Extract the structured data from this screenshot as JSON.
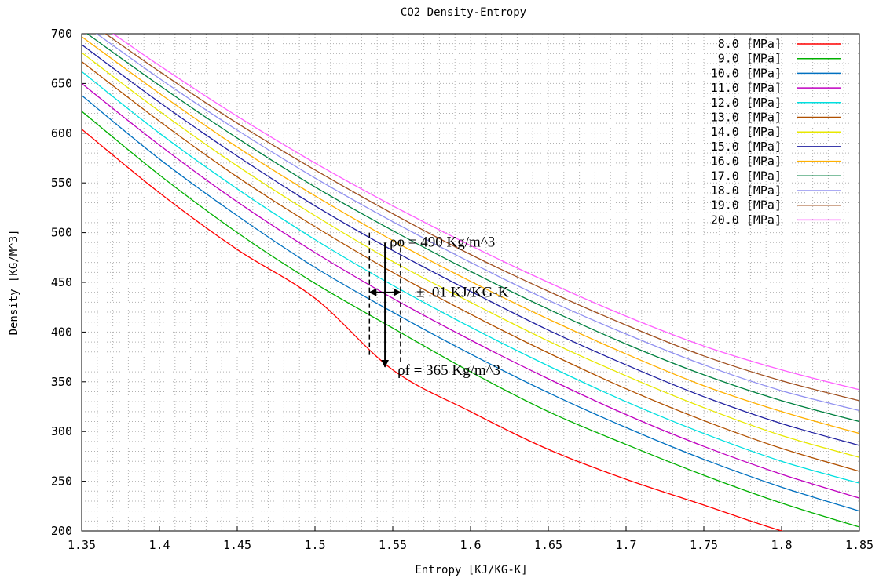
{
  "chart_data": {
    "type": "line",
    "title": "CO2 Density-Entropy",
    "xlabel": "Entropy [KJ/KG-K]",
    "ylabel": "Density [KG/M^3]",
    "xlim": [
      1.35,
      1.85
    ],
    "ylim": [
      200,
      700
    ],
    "xticks": [
      "1.35",
      "1.4",
      "1.45",
      "1.5",
      "1.55",
      "1.6",
      "1.65",
      "1.7",
      "1.75",
      "1.8",
      "1.85"
    ],
    "yticks": [
      "200",
      "250",
      "300",
      "350",
      "400",
      "450",
      "500",
      "550",
      "600",
      "650",
      "700"
    ],
    "grid": "dotted",
    "legend_position": "top-right",
    "x": [
      1.35,
      1.4,
      1.45,
      1.5,
      1.55,
      1.6,
      1.65,
      1.7,
      1.75,
      1.8,
      1.85
    ],
    "series": [
      {
        "name": "8.0 [MPa]",
        "color": "#ff0000",
        "values": [
          604,
          540,
          483,
          434,
          362,
          320,
          282,
          252,
          226,
          200,
          180
        ]
      },
      {
        "name": "9.0 [MPa]",
        "color": "#00b000",
        "values": [
          622,
          558,
          500,
          449,
          404,
          360,
          320,
          287,
          256,
          228,
          204
        ]
      },
      {
        "name": "10.0 [MPa]",
        "color": "#0070c0",
        "values": [
          638,
          574,
          517,
          465,
          420,
          378,
          339,
          304,
          272,
          244,
          220
        ]
      },
      {
        "name": "11.0 [MPa]",
        "color": "#c000c0",
        "values": [
          650,
          588,
          531,
          480,
          434,
          392,
          353,
          317,
          285,
          257,
          233
        ]
      },
      {
        "name": "12.0 [MPa]",
        "color": "#00e0e0",
        "values": [
          662,
          600,
          544,
          493,
          447,
          405,
          366,
          330,
          298,
          270,
          248
        ]
      },
      {
        "name": "13.0 [MPa]",
        "color": "#b05000",
        "values": [
          672,
          612,
          556,
          506,
          460,
          418,
          379,
          343,
          311,
          283,
          260
        ]
      },
      {
        "name": "14.0 [MPa]",
        "color": "#e8e800",
        "values": [
          681,
          622,
          567,
          517,
          471,
          430,
          391,
          356,
          324,
          296,
          274
        ]
      },
      {
        "name": "15.0 [MPa]",
        "color": "#2020a0",
        "values": [
          689,
          631,
          577,
          527,
          482,
          441,
          402,
          367,
          335,
          308,
          286
        ]
      },
      {
        "name": "16.0 [MPa]",
        "color": "#ffb000",
        "values": [
          697,
          640,
          586,
          537,
          492,
          451,
          413,
          378,
          346,
          320,
          298
        ]
      },
      {
        "name": "17.0 [MPa]",
        "color": "#008040",
        "values": [
          704,
          648,
          595,
          546,
          502,
          461,
          423,
          388,
          357,
          331,
          310
        ]
      },
      {
        "name": "18.0 [MPa]",
        "color": "#9090f0",
        "values": [
          711,
          655,
          603,
          555,
          511,
          470,
          432,
          398,
          367,
          341,
          321
        ]
      },
      {
        "name": "19.0 [MPa]",
        "color": "#a05020",
        "values": [
          717,
          662,
          610,
          563,
          519,
          478,
          441,
          407,
          376,
          351,
          331
        ]
      },
      {
        "name": "20.0 [MPa]",
        "color": "#ff60ff",
        "values": [
          722,
          668,
          617,
          570,
          527,
          487,
          450,
          416,
          386,
          362,
          342
        ]
      }
    ],
    "annotations": {
      "rho_o": "ρo = 490 Kg/m^3",
      "rho_f": "ρf = 365 Kg/m^3",
      "delta_s": "± .01 KJ/KG-K",
      "dashed_x": [
        1.535,
        1.555
      ],
      "arrow_x": 1.545,
      "arrow_y": [
        490,
        365
      ],
      "harrow_y": 440
    }
  }
}
